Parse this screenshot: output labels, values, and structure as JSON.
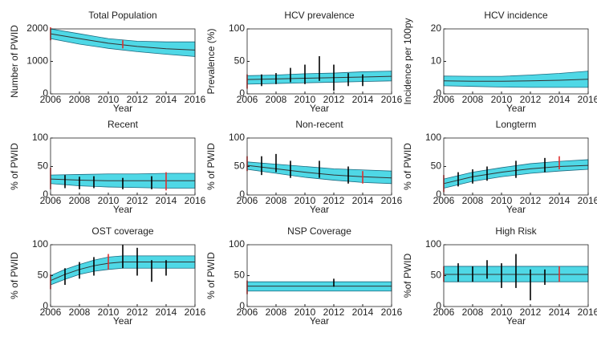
{
  "chart_data": [
    {
      "type": "line",
      "title": "Total Population",
      "xlabel": "Year",
      "ylabel": "Number of PWID",
      "x": [
        2006,
        2008,
        2010,
        2012,
        2014,
        2016
      ],
      "median": [
        1850,
        1700,
        1560,
        1460,
        1390,
        1350
      ],
      "lower": [
        1700,
        1530,
        1400,
        1300,
        1220,
        1150
      ],
      "upper": [
        2000,
        1850,
        1700,
        1620,
        1600,
        1600
      ],
      "xlim": [
        2006,
        2016
      ],
      "xticks": [
        2006,
        2008,
        2010,
        2012,
        2014,
        2016
      ],
      "ylim": [
        0,
        2000
      ],
      "yticks": [
        0,
        1000,
        2000
      ],
      "band_color": "#4fd8e6",
      "line_color": "#333333",
      "error_bars": {
        "x": [
          2006,
          2011
        ],
        "low": [
          1650,
          1400
        ],
        "high": [
          2050,
          1650
        ],
        "colors": [
          "#e03030",
          "#e03030"
        ]
      }
    },
    {
      "type": "line",
      "title": "HCV prevalence",
      "xlabel": "Year",
      "ylabel": "Prevalence (%)",
      "x": [
        2006,
        2008,
        2010,
        2012,
        2014,
        2016
      ],
      "median": [
        22,
        23,
        24,
        25,
        26,
        27
      ],
      "lower": [
        15,
        16,
        17,
        18,
        19,
        20
      ],
      "upper": [
        28,
        29,
        31,
        32,
        34,
        35
      ],
      "xlim": [
        2006,
        2016
      ],
      "xticks": [
        2006,
        2008,
        2010,
        2012,
        2014,
        2016
      ],
      "ylim": [
        0,
        100
      ],
      "yticks": [
        0,
        50,
        100
      ],
      "band_color": "#4fd8e6",
      "line_color": "#333333",
      "error_bars": {
        "x": [
          2006,
          2007,
          2008,
          2009,
          2010,
          2011,
          2012,
          2013,
          2014
        ],
        "low": [
          8,
          12,
          15,
          18,
          15,
          20,
          5,
          12,
          12
        ],
        "high": [
          30,
          30,
          32,
          40,
          45,
          58,
          45,
          32,
          30
        ],
        "colors": [
          "#e03030",
          "#000000",
          "#000000",
          "#000000",
          "#000000",
          "#000000",
          "#000000",
          "#000000",
          "#000000"
        ]
      }
    },
    {
      "type": "line",
      "title": "HCV incidence",
      "xlabel": "Year",
      "ylabel": "Incidence per 100py",
      "x": [
        2006,
        2008,
        2010,
        2012,
        2014,
        2016
      ],
      "median": [
        4,
        3.9,
        3.9,
        4,
        4.2,
        4.5
      ],
      "lower": [
        2.5,
        2.3,
        2.1,
        2,
        2,
        2
      ],
      "upper": [
        5.5,
        5.4,
        5.4,
        5.8,
        6.3,
        7
      ],
      "xlim": [
        2006,
        2016
      ],
      "xticks": [
        2006,
        2008,
        2010,
        2012,
        2014,
        2016
      ],
      "ylim": [
        0,
        20
      ],
      "yticks": [
        0,
        10,
        20
      ],
      "band_color": "#4fd8e6",
      "line_color": "#333333",
      "error_bars": {
        "x": [],
        "low": [],
        "high": [],
        "colors": []
      }
    },
    {
      "type": "line",
      "title": "Recent",
      "xlabel": "Year",
      "ylabel": "% of PWID",
      "x": [
        2006,
        2008,
        2010,
        2012,
        2014,
        2016
      ],
      "median": [
        28,
        26,
        25,
        25,
        25,
        25
      ],
      "lower": [
        20,
        16,
        14,
        13,
        12,
        12
      ],
      "upper": [
        35,
        36,
        37,
        37,
        38,
        38
      ],
      "xlim": [
        2006,
        2016
      ],
      "xticks": [
        2006,
        2008,
        2010,
        2012,
        2014,
        2016
      ],
      "ylim": [
        0,
        100
      ],
      "yticks": [
        0,
        50,
        100
      ],
      "band_color": "#4fd8e6",
      "line_color": "#333333",
      "error_bars": {
        "x": [
          2006,
          2007,
          2008,
          2009,
          2011,
          2013,
          2014
        ],
        "low": [
          10,
          12,
          10,
          12,
          10,
          10,
          8
        ],
        "high": [
          48,
          35,
          32,
          33,
          30,
          33,
          40
        ],
        "colors": [
          "#e03030",
          "#000000",
          "#000000",
          "#000000",
          "#000000",
          "#000000",
          "#e03030"
        ]
      }
    },
    {
      "type": "line",
      "title": "Non-recent",
      "xlabel": "Year",
      "ylabel": "% of PWID",
      "x": [
        2006,
        2008,
        2010,
        2012,
        2014,
        2016
      ],
      "median": [
        52,
        46,
        40,
        35,
        32,
        30
      ],
      "lower": [
        45,
        38,
        31,
        26,
        22,
        20
      ],
      "upper": [
        58,
        54,
        50,
        46,
        44,
        42
      ],
      "xlim": [
        2006,
        2016
      ],
      "xticks": [
        2006,
        2008,
        2010,
        2012,
        2014,
        2016
      ],
      "ylim": [
        0,
        100
      ],
      "yticks": [
        0,
        50,
        100
      ],
      "band_color": "#4fd8e6",
      "line_color": "#333333",
      "error_bars": {
        "x": [
          2006,
          2007,
          2008,
          2009,
          2011,
          2013,
          2014
        ],
        "low": [
          42,
          35,
          40,
          30,
          30,
          20,
          20
        ],
        "high": [
          68,
          68,
          72,
          60,
          60,
          50,
          42
        ],
        "colors": [
          "#e03030",
          "#000000",
          "#000000",
          "#000000",
          "#000000",
          "#000000",
          "#e03030"
        ]
      }
    },
    {
      "type": "line",
      "title": "Longterm",
      "xlabel": "Year",
      "ylabel": "% of PWID",
      "x": [
        2006,
        2008,
        2010,
        2012,
        2014,
        2016
      ],
      "median": [
        20,
        32,
        40,
        46,
        50,
        52
      ],
      "lower": [
        12,
        24,
        32,
        38,
        42,
        45
      ],
      "upper": [
        28,
        40,
        48,
        55,
        59,
        62
      ],
      "xlim": [
        2006,
        2016
      ],
      "xticks": [
        2006,
        2008,
        2010,
        2012,
        2014,
        2016
      ],
      "ylim": [
        0,
        100
      ],
      "yticks": [
        0,
        50,
        100
      ],
      "band_color": "#4fd8e6",
      "line_color": "#333333",
      "error_bars": {
        "x": [
          2006,
          2007,
          2008,
          2009,
          2011,
          2013,
          2014
        ],
        "low": [
          5,
          15,
          20,
          25,
          30,
          40,
          45
        ],
        "high": [
          35,
          40,
          45,
          50,
          60,
          65,
          68
        ],
        "colors": [
          "#e03030",
          "#000000",
          "#000000",
          "#000000",
          "#000000",
          "#000000",
          "#e03030"
        ]
      }
    },
    {
      "type": "line",
      "title": "OST coverage",
      "xlabel": "Year",
      "ylabel": "% of PWID",
      "x": [
        2006,
        2007,
        2008,
        2009,
        2010,
        2011,
        2012,
        2014,
        2016
      ],
      "median": [
        42,
        52,
        60,
        66,
        70,
        72,
        72,
        72,
        72
      ],
      "lower": [
        35,
        44,
        52,
        57,
        60,
        62,
        62,
        62,
        62
      ],
      "upper": [
        50,
        60,
        68,
        75,
        80,
        82,
        82,
        82,
        82
      ],
      "xlim": [
        2006,
        2016
      ],
      "xticks": [
        2006,
        2008,
        2010,
        2012,
        2014,
        2016
      ],
      "ylim": [
        0,
        100
      ],
      "yticks": [
        0,
        50,
        100
      ],
      "band_color": "#4fd8e6",
      "line_color": "#333333",
      "error_bars": {
        "x": [
          2006,
          2007,
          2008,
          2009,
          2010,
          2011,
          2012,
          2013,
          2014
        ],
        "low": [
          28,
          35,
          45,
          50,
          60,
          62,
          50,
          40,
          50
        ],
        "high": [
          52,
          62,
          72,
          80,
          85,
          100,
          95,
          75,
          75
        ],
        "colors": [
          "#e03030",
          "#000000",
          "#000000",
          "#000000",
          "#e03030",
          "#000000",
          "#000000",
          "#000000",
          "#000000"
        ]
      }
    },
    {
      "type": "line",
      "title": "NSP Coverage",
      "xlabel": "Year",
      "ylabel": "% of PWID",
      "x": [
        2006,
        2008,
        2010,
        2012,
        2014,
        2016
      ],
      "median": [
        33,
        33,
        33,
        33,
        33,
        33
      ],
      "lower": [
        25,
        25,
        25,
        25,
        25,
        25
      ],
      "upper": [
        40,
        40,
        40,
        40,
        40,
        40
      ],
      "xlim": [
        2006,
        2016
      ],
      "xticks": [
        2006,
        2008,
        2010,
        2012,
        2014,
        2016
      ],
      "ylim": [
        0,
        100
      ],
      "yticks": [
        0,
        50,
        100
      ],
      "band_color": "#4fd8e6",
      "line_color": "#333333",
      "error_bars": {
        "x": [
          2006,
          2012
        ],
        "low": [
          20,
          32
        ],
        "high": [
          42,
          45
        ],
        "colors": [
          "#e03030",
          "#000000"
        ]
      }
    },
    {
      "type": "line",
      "title": "High Risk",
      "xlabel": "Year",
      "ylabel": "%of PWID",
      "x": [
        2006,
        2008,
        2010,
        2012,
        2014,
        2016
      ],
      "median": [
        52,
        52,
        52,
        52,
        52,
        52
      ],
      "lower": [
        40,
        40,
        40,
        40,
        40,
        40
      ],
      "upper": [
        65,
        65,
        65,
        65,
        65,
        65
      ],
      "xlim": [
        2006,
        2016
      ],
      "xticks": [
        2006,
        2008,
        2010,
        2012,
        2014,
        2016
      ],
      "ylim": [
        0,
        100
      ],
      "yticks": [
        0,
        50,
        100
      ],
      "band_color": "#4fd8e6",
      "line_color": "#333333",
      "error_bars": {
        "x": [
          2006,
          2007,
          2008,
          2009,
          2010,
          2011,
          2012,
          2013,
          2014
        ],
        "low": [
          40,
          40,
          40,
          45,
          30,
          30,
          10,
          35,
          40
        ],
        "high": [
          65,
          70,
          65,
          75,
          70,
          85,
          60,
          60,
          65
        ],
        "colors": [
          "#e03030",
          "#000000",
          "#000000",
          "#000000",
          "#000000",
          "#000000",
          "#000000",
          "#000000",
          "#e03030"
        ]
      }
    }
  ]
}
